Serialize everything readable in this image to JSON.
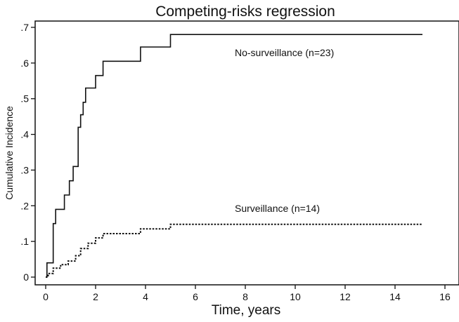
{
  "chart_data": {
    "type": "line",
    "title": "Competing-risks regression",
    "xlabel": "Time, years",
    "ylabel": "Cumulative Incidence",
    "xlim": [
      0,
      16
    ],
    "ylim": [
      0,
      0.7
    ],
    "x_ticks": [
      0,
      2,
      4,
      6,
      8,
      10,
      12,
      14,
      16
    ],
    "x_tick_labels": [
      "0",
      "2",
      "4",
      "6",
      "8",
      "10",
      "12",
      "14",
      "16"
    ],
    "y_ticks": [
      0,
      0.1,
      0.2,
      0.3,
      0.4,
      0.5,
      0.6,
      0.7
    ],
    "y_tick_labels": [
      "0",
      ".1",
      ".2",
      ".3",
      ".4",
      ".5",
      ".6",
      ".7"
    ],
    "grid": false,
    "series": [
      {
        "name": "No-surveillance (n=23)",
        "line_style": "solid",
        "color": "#111111",
        "step": true,
        "points": [
          [
            0.0,
            0.0
          ],
          [
            0.05,
            0.04
          ],
          [
            0.3,
            0.15
          ],
          [
            0.4,
            0.19
          ],
          [
            0.75,
            0.23
          ],
          [
            0.95,
            0.27
          ],
          [
            1.1,
            0.31
          ],
          [
            1.3,
            0.42
          ],
          [
            1.4,
            0.455
          ],
          [
            1.5,
            0.49
          ],
          [
            1.6,
            0.53
          ],
          [
            2.0,
            0.565
          ],
          [
            2.3,
            0.605
          ],
          [
            3.8,
            0.645
          ],
          [
            5.0,
            0.68
          ],
          [
            15.1,
            0.68
          ]
        ]
      },
      {
        "name": "Surveillance (n=14)",
        "line_style": "dotted",
        "color": "#111111",
        "step": true,
        "points": [
          [
            0.0,
            0.0
          ],
          [
            0.1,
            0.01
          ],
          [
            0.3,
            0.025
          ],
          [
            0.6,
            0.035
          ],
          [
            0.9,
            0.045
          ],
          [
            1.2,
            0.06
          ],
          [
            1.4,
            0.08
          ],
          [
            1.7,
            0.095
          ],
          [
            2.0,
            0.11
          ],
          [
            2.3,
            0.122
          ],
          [
            3.8,
            0.135
          ],
          [
            5.0,
            0.148
          ],
          [
            15.1,
            0.148
          ]
        ]
      }
    ],
    "annotations": [
      {
        "text": "No-surveillance (n=23)",
        "series": 0
      },
      {
        "text": "Surveillance (n=14)",
        "series": 1
      }
    ]
  }
}
